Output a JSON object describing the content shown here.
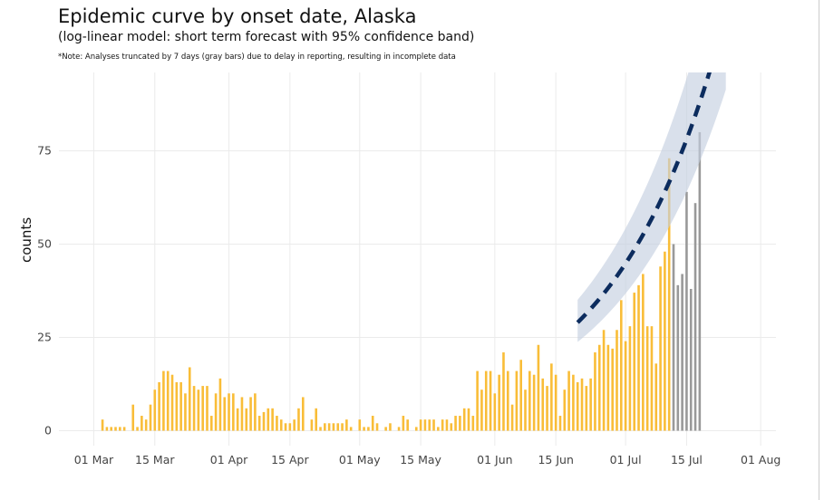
{
  "chart_data": {
    "type": "bar",
    "title": "Epidemic curve by onset date, Alaska",
    "subtitle": "(log-linear model: short term forecast with 95% confidence band)",
    "note": "*Note: Analyses truncated by 7 days (gray bars) due to delay in reporting, resulting in incomplete data",
    "xlabel": "",
    "ylabel": "counts",
    "x_unit": "days since 01 Mar",
    "xlim": [
      -8,
      156.5
    ],
    "ylim": [
      -4,
      96
    ],
    "grid": true,
    "x_ticks": [
      {
        "day": 0,
        "label": "01 Mar"
      },
      {
        "day": 14,
        "label": "15 Mar"
      },
      {
        "day": 31,
        "label": "01 Apr"
      },
      {
        "day": 45,
        "label": "15 Apr"
      },
      {
        "day": 61,
        "label": "01 May"
      },
      {
        "day": 75,
        "label": "15 May"
      },
      {
        "day": 92,
        "label": "01 Jun"
      },
      {
        "day": 106,
        "label": "15 Jun"
      },
      {
        "day": 122,
        "label": "01 Jul"
      },
      {
        "day": 136,
        "label": "15 Jul"
      },
      {
        "day": 153,
        "label": "01 Aug"
      }
    ],
    "y_ticks": [
      {
        "value": 0,
        "label": "0"
      },
      {
        "value": 25,
        "label": "25"
      },
      {
        "value": 50,
        "label": "50"
      },
      {
        "value": 75,
        "label": "75"
      }
    ],
    "first_bar_day": 2,
    "values": [
      3,
      1,
      1,
      1,
      1,
      1,
      0,
      7,
      1,
      4,
      3,
      7,
      11,
      13,
      16,
      16,
      15,
      13,
      13,
      10,
      17,
      12,
      11,
      12,
      12,
      4,
      10,
      14,
      9,
      10,
      10,
      6,
      9,
      6,
      9,
      10,
      4,
      5,
      6,
      6,
      4,
      3,
      2,
      2,
      3,
      6,
      9,
      0,
      3,
      6,
      1,
      2,
      2,
      2,
      2,
      2,
      3,
      1,
      0,
      3,
      1,
      1,
      4,
      2,
      0,
      1,
      2,
      0,
      1,
      4,
      3,
      0,
      1,
      3,
      3,
      3,
      3,
      1,
      3,
      3,
      2,
      4,
      4,
      6,
      6,
      4,
      16,
      11,
      16,
      16,
      10,
      15,
      21,
      16,
      7,
      16,
      19,
      11,
      16,
      15,
      23,
      14,
      12,
      18,
      15,
      4,
      11,
      16,
      15,
      13,
      14,
      12,
      14,
      21,
      23,
      27,
      23,
      22,
      27,
      35,
      24,
      28,
      37,
      39,
      42,
      28,
      28,
      18,
      44,
      48,
      73,
      50,
      39,
      42,
      64,
      38,
      61,
      80
    ],
    "truncated_days": 7,
    "colors": {
      "bars": "#f9bd38",
      "truncated": "#999999",
      "forecast_line": "#0c2c5e",
      "band": "#c5cfe0"
    },
    "forecast": {
      "start_day": 111,
      "end_day": 145,
      "start_value": 29,
      "growth_rate": 0.0396,
      "lower_ratio": 0.82,
      "upper_ratio": 1.21
    }
  }
}
